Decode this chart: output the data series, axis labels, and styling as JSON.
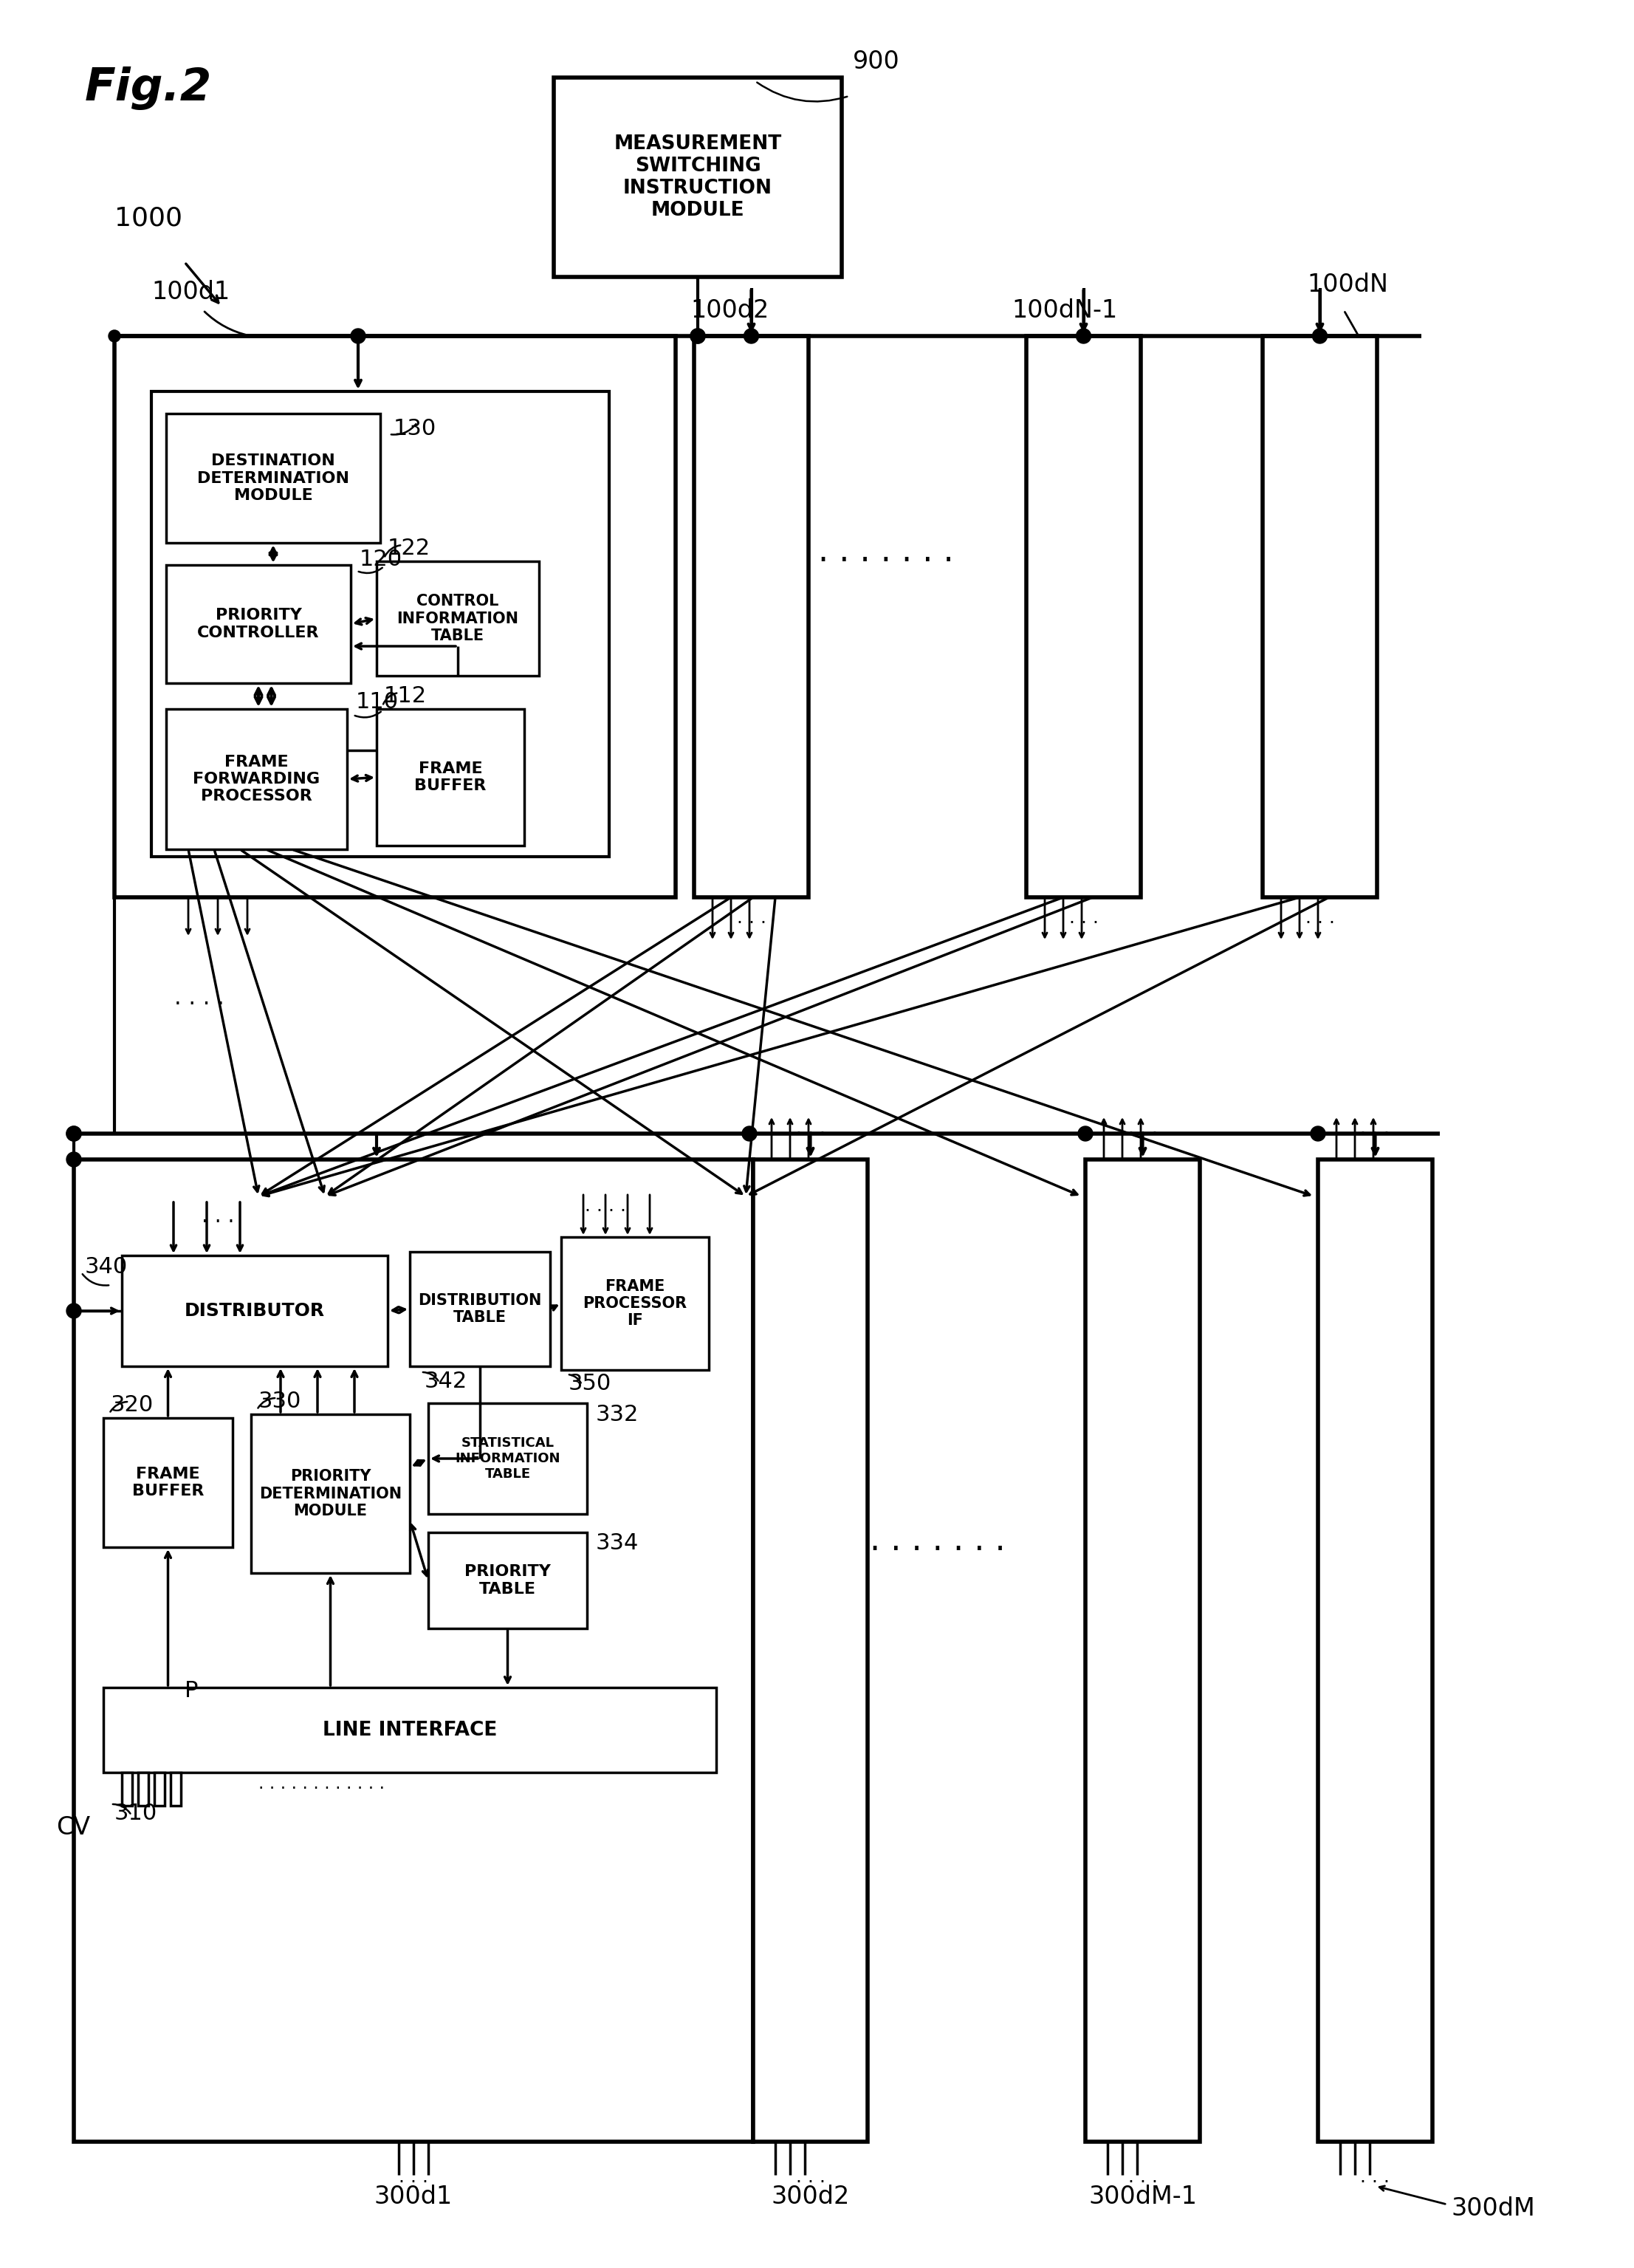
{
  "fig_label": "Fig.2",
  "bg_color": "#ffffff",
  "lc": "#000000",
  "box_measurement": "MEASUREMENT\nSWITCHING\nINSTRUCTION\nMODULE",
  "box_destination": "DESTINATION\nDETERMINATION\nMODULE",
  "box_priority_ctrl": "PRIORITY\nCONTROLLER",
  "box_control_info": "CONTROL\nINFORMATION\nTABLE",
  "box_frame_fwd": "FRAME\nFORWARDING\nPROCESSOR",
  "box_frame_buf_top": "FRAME\nBUFFER",
  "box_distributor": "DISTRIBUTOR",
  "box_distribution_table": "DISTRIBUTION\nTABLE",
  "box_frame_proc_if": "FRAME\nPROCESSOR\nIF",
  "box_priority_det": "PRIORITY\nDETERMINATION\nMODULE",
  "box_stat_info": "STATISTICAL\nINFORMATION\nTABLE",
  "box_priority_table": "PRIORITY\nTABLE",
  "box_frame_buf_bot": "FRAME\nBUFFER",
  "box_line_iface": "LINE INTERFACE",
  "labels": {
    "fig": "Fig.2",
    "L900": "900",
    "L1000": "1000",
    "L100d1": "100d1",
    "L100d2": "100d2",
    "L100dN1": "100dN-1",
    "L100dN": "100dN",
    "L130": "130",
    "L120": "120",
    "L122": "122",
    "L110": "110",
    "L112": "112",
    "L340": "340",
    "L342": "342",
    "L350": "350",
    "L330": "330",
    "L332": "332",
    "L334": "334",
    "L320": "320",
    "L310": "310",
    "L300d1": "300d1",
    "L300d2": "300d2",
    "L300dM1": "300dM-1",
    "L300dM": "300dM",
    "LCV": "CV",
    "LP": "P"
  }
}
